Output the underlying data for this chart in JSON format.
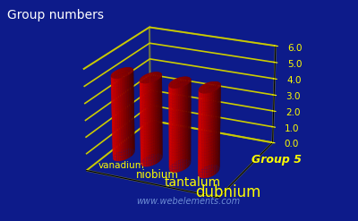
{
  "title": "Group numbers",
  "elements": [
    "vanadium",
    "niobium",
    "tantalum",
    "dubnium"
  ],
  "values": [
    5,
    5,
    5,
    5
  ],
  "bar_color_side": "#dd0000",
  "bar_color_light": "#ff4444",
  "bar_color_dark": "#880000",
  "background_color": "#0d1b8a",
  "grid_color": "#cccc00",
  "text_color": "#ffffff",
  "label_color": "#ffff00",
  "group_label": "Group 5",
  "website": "www.webelements.com",
  "zlim": [
    0,
    6
  ],
  "zticks": [
    0.0,
    1.0,
    2.0,
    3.0,
    4.0,
    5.0,
    6.0
  ],
  "elev": 22,
  "azim": -65
}
